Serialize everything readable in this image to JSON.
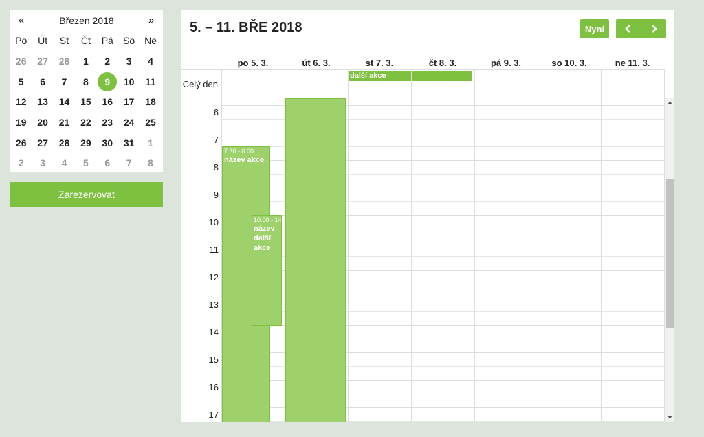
{
  "mini_calendar": {
    "prev_label": "«",
    "next_label": "»",
    "month_title": "Březen 2018",
    "weekdays": [
      "Po",
      "Út",
      "St",
      "Čt",
      "Pá",
      "So",
      "Ne"
    ],
    "weeks": [
      [
        "26",
        "27",
        "28",
        "1",
        "2",
        "3",
        "4"
      ],
      [
        "5",
        "6",
        "7",
        "8",
        "9",
        "10",
        "11"
      ],
      [
        "12",
        "13",
        "14",
        "15",
        "16",
        "17",
        "18"
      ],
      [
        "19",
        "20",
        "21",
        "22",
        "23",
        "24",
        "25"
      ],
      [
        "26",
        "27",
        "28",
        "29",
        "30",
        "31",
        "1"
      ],
      [
        "2",
        "3",
        "4",
        "5",
        "6",
        "7",
        "8"
      ]
    ],
    "today": "9",
    "accent_color": "#7ec140"
  },
  "reserve_button": {
    "label": "Zarezervovat"
  },
  "main": {
    "week_title": "5. – 11. BŘE 2018",
    "now_label": "Nyní",
    "prev_icon": "chevron-left-icon",
    "next_icon": "chevron-right-icon",
    "days": [
      "po 5. 3.",
      "út 6. 3.",
      "st 7. 3.",
      "čt 8. 3.",
      "pá 9. 3.",
      "so 10. 3.",
      "ne 11. 3."
    ],
    "allday_label": "Celý den",
    "allday_event": {
      "title": "další akce"
    },
    "hours": [
      "6",
      "7",
      "8",
      "9",
      "10",
      "11",
      "12",
      "13",
      "14",
      "15",
      "16",
      "17"
    ],
    "events": [
      {
        "time": "7:30 - 0:00",
        "title": "název akce"
      },
      {
        "time": "10:00 - 14",
        "title": "název další akce"
      },
      {
        "time": "",
        "title": ""
      }
    ],
    "event_color": "#9ed16b"
  }
}
